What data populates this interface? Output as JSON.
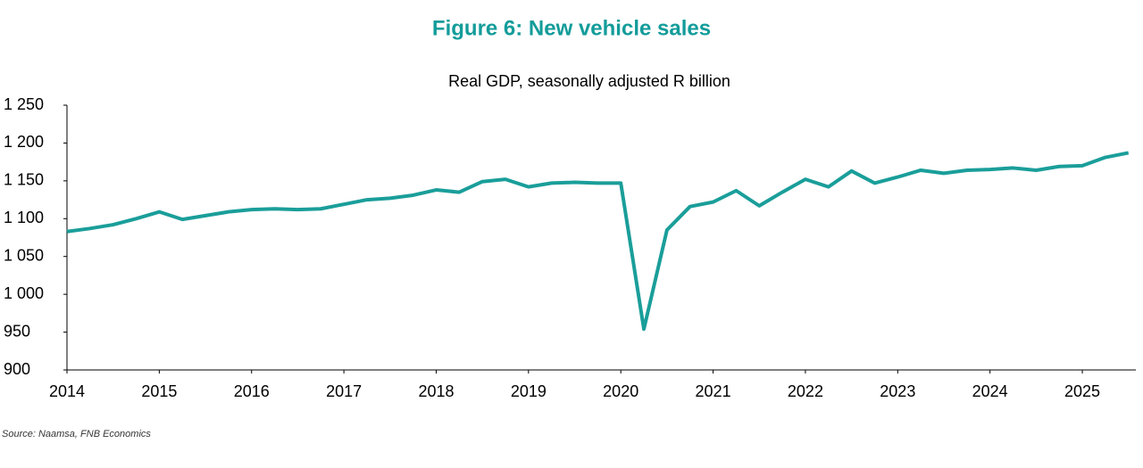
{
  "chart_data": {
    "type": "line",
    "title": "Figure 6: New vehicle sales",
    "subtitle": "Real GDP, seasonally adjusted R billion",
    "source": "Source: Naamsa, FNB Economics",
    "x": [
      2014,
      2014.25,
      2014.5,
      2014.75,
      2015,
      2015.25,
      2015.5,
      2015.75,
      2016,
      2016.25,
      2016.5,
      2016.75,
      2017,
      2017.25,
      2017.5,
      2017.75,
      2018,
      2018.25,
      2018.5,
      2018.75,
      2019,
      2019.25,
      2019.5,
      2019.75,
      2020,
      2020.25,
      2020.5,
      2020.75,
      2021,
      2021.25,
      2021.5,
      2021.75,
      2022,
      2022.25,
      2022.5,
      2022.75,
      2023,
      2023.25,
      2023.5,
      2023.75,
      2024,
      2024.25,
      2024.5,
      2024.75,
      2025,
      2025.25,
      2025.5
    ],
    "series": [
      {
        "color": "#1a9e9a",
        "values": [
          1083,
          1087,
          1092,
          1100,
          1109,
          1099,
          1104,
          1109,
          1112,
          1113,
          1112,
          1113,
          1119,
          1125,
          1127,
          1131,
          1138,
          1135,
          1149,
          1152,
          1142,
          1147,
          1148,
          1147,
          1147,
          954,
          1085,
          1116,
          1122,
          1137,
          1117,
          1135,
          1152,
          1142,
          1163,
          1147,
          1155,
          1164,
          1160,
          1164,
          1165,
          1167,
          1164,
          1169,
          1170,
          1181,
          1187
        ]
      }
    ],
    "xlim": [
      2014,
      2025.58
    ],
    "xticks": [
      2014,
      2015,
      2016,
      2017,
      2018,
      2019,
      2020,
      2021,
      2022,
      2023,
      2024,
      2025
    ],
    "ylim": [
      900,
      1250
    ],
    "yticks": [
      {
        "value": 1250,
        "label": "1 250"
      },
      {
        "value": 1200,
        "label": "1 200"
      },
      {
        "value": 1150,
        "label": "1 150"
      },
      {
        "value": 1100,
        "label": "1 100"
      },
      {
        "value": 1050,
        "label": "1 050"
      },
      {
        "value": 1000,
        "label": "1 000"
      },
      950,
      900
    ],
    "grid": false
  }
}
